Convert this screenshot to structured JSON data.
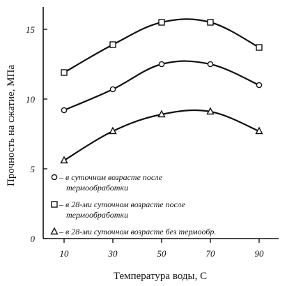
{
  "chart_data": {
    "type": "line",
    "xlabel": "Температура воды,  С",
    "ylabel": "Прочность на сжатие, МПа",
    "xlim": [
      0,
      100
    ],
    "ylim": [
      0,
      17
    ],
    "xticks": [
      10,
      30,
      50,
      70,
      90
    ],
    "yticks": [
      0,
      5,
      10,
      15
    ],
    "grid": false,
    "legend_position": "bottom-left",
    "series": [
      {
        "marker": "square",
        "legend": [
          "– в 28-ми суточном возрасте после",
          "термообработки"
        ],
        "x": [
          10,
          30,
          50,
          70,
          90
        ],
        "y": [
          11.9,
          13.9,
          15.5,
          15.5,
          13.7
        ]
      },
      {
        "marker": "circle",
        "legend": [
          "– в суточном возрасте после",
          "термообработки"
        ],
        "x": [
          10,
          30,
          50,
          70,
          90
        ],
        "y": [
          9.2,
          10.7,
          12.5,
          12.5,
          11.0
        ]
      },
      {
        "marker": "triangle",
        "legend": [
          "– в 28-ми суточном возрасте без термообр."
        ],
        "x": [
          10,
          30,
          50,
          70,
          90
        ],
        "y": [
          5.6,
          7.7,
          8.9,
          9.1,
          7.7
        ]
      }
    ],
    "legend_order": [
      1,
      0,
      2
    ]
  }
}
